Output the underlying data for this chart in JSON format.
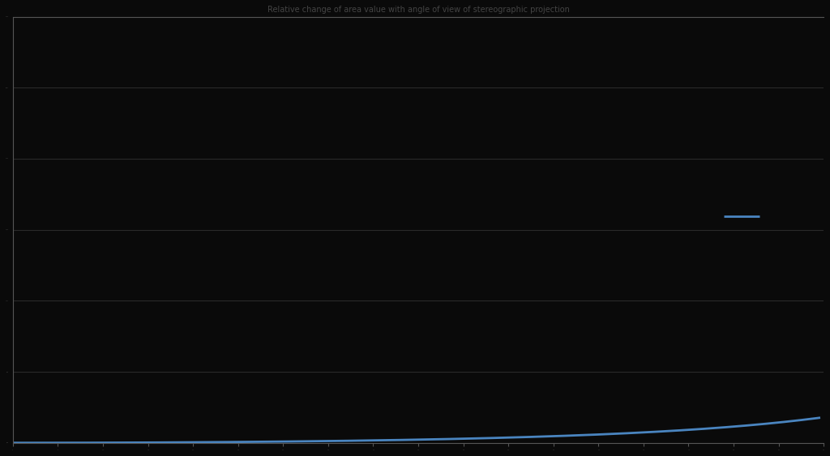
{
  "title": "Relative change of area value with angle of view of stereographic projection",
  "background_color": "#0a0a0a",
  "plot_bg_color": "#0a0a0a",
  "line_color": "#4a85c0",
  "line_width": 2.0,
  "grid_color": "#2a2a2a",
  "axis_color": "#555555",
  "tick_color": "#555555",
  "title_color": "#444444",
  "xlim": [
    0,
    90
  ],
  "ylim": [
    0,
    50
  ],
  "x_ticks": [
    0,
    5,
    10,
    15,
    20,
    25,
    30,
    35,
    40,
    45,
    50,
    55,
    60,
    65,
    70,
    75,
    80,
    85,
    90
  ],
  "y_tick_count": 7,
  "legend_color": "#4a85c0",
  "legend_line_x": [
    0.872,
    0.915
  ],
  "legend_line_y": [
    0.525,
    0.525
  ]
}
